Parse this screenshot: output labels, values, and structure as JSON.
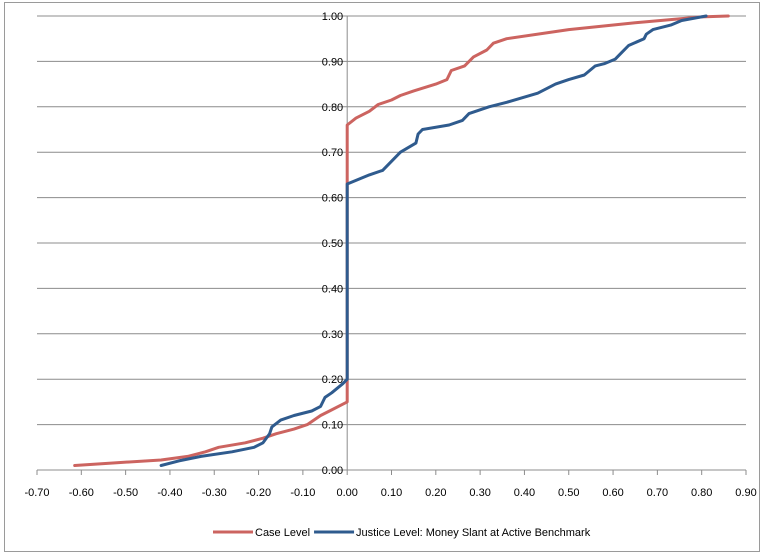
{
  "chart_data": {
    "type": "line",
    "title": "",
    "xlabel": "",
    "ylabel": "",
    "xlim": [
      -0.7,
      0.9
    ],
    "ylim": [
      0.0,
      1.0
    ],
    "grid": "horizontal",
    "legend_position": "bottom",
    "x_tick_labels": [
      "-0.70",
      "-0.60",
      "-0.50",
      "-0.40",
      "-0.30",
      "-0.20",
      "-0.10",
      "0.00",
      "0.10",
      "0.20",
      "0.30",
      "0.40",
      "0.50",
      "0.60",
      "0.70",
      "0.80",
      "0.90"
    ],
    "y_tick_labels": [
      "0.00",
      "0.10",
      "0.20",
      "0.30",
      "0.40",
      "0.50",
      "0.60",
      "0.70",
      "0.80",
      "0.90",
      "1.00"
    ],
    "series": [
      {
        "name": "Case Level",
        "color": "#cc6460",
        "points": [
          [
            -0.615,
            0.01
          ],
          [
            -0.52,
            0.016
          ],
          [
            -0.42,
            0.022
          ],
          [
            -0.36,
            0.03
          ],
          [
            -0.32,
            0.04
          ],
          [
            -0.29,
            0.05
          ],
          [
            -0.23,
            0.06
          ],
          [
            -0.19,
            0.07
          ],
          [
            -0.16,
            0.08
          ],
          [
            -0.12,
            0.09
          ],
          [
            -0.09,
            0.1
          ],
          [
            -0.06,
            0.12
          ],
          [
            -0.04,
            0.13
          ],
          [
            -0.01,
            0.145
          ],
          [
            0.0,
            0.15
          ],
          [
            0.0,
            0.63
          ],
          [
            0.0,
            0.76
          ],
          [
            0.02,
            0.775
          ],
          [
            0.05,
            0.79
          ],
          [
            0.07,
            0.805
          ],
          [
            0.1,
            0.815
          ],
          [
            0.12,
            0.825
          ],
          [
            0.15,
            0.835
          ],
          [
            0.2,
            0.85
          ],
          [
            0.225,
            0.86
          ],
          [
            0.235,
            0.88
          ],
          [
            0.265,
            0.89
          ],
          [
            0.285,
            0.91
          ],
          [
            0.315,
            0.925
          ],
          [
            0.33,
            0.94
          ],
          [
            0.36,
            0.95
          ],
          [
            0.5,
            0.97
          ],
          [
            0.65,
            0.985
          ],
          [
            0.8,
            0.998
          ],
          [
            0.86,
            1.0
          ]
        ]
      },
      {
        "name": "Justice Level: Money Slant at Active Benchmark",
        "color": "#2f5b8e",
        "points": [
          [
            -0.42,
            0.01
          ],
          [
            -0.38,
            0.02
          ],
          [
            -0.33,
            0.03
          ],
          [
            -0.26,
            0.04
          ],
          [
            -0.21,
            0.05
          ],
          [
            -0.19,
            0.06
          ],
          [
            -0.175,
            0.08
          ],
          [
            -0.17,
            0.095
          ],
          [
            -0.15,
            0.11
          ],
          [
            -0.12,
            0.12
          ],
          [
            -0.08,
            0.13
          ],
          [
            -0.06,
            0.14
          ],
          [
            -0.05,
            0.16
          ],
          [
            -0.035,
            0.17
          ],
          [
            -0.01,
            0.19
          ],
          [
            0.0,
            0.2
          ],
          [
            0.0,
            0.63
          ],
          [
            0.05,
            0.65
          ],
          [
            0.08,
            0.66
          ],
          [
            0.1,
            0.68
          ],
          [
            0.12,
            0.7
          ],
          [
            0.155,
            0.72
          ],
          [
            0.16,
            0.74
          ],
          [
            0.17,
            0.75
          ],
          [
            0.23,
            0.76
          ],
          [
            0.26,
            0.77
          ],
          [
            0.275,
            0.785
          ],
          [
            0.32,
            0.8
          ],
          [
            0.36,
            0.81
          ],
          [
            0.43,
            0.83
          ],
          [
            0.47,
            0.85
          ],
          [
            0.5,
            0.86
          ],
          [
            0.535,
            0.87
          ],
          [
            0.56,
            0.89
          ],
          [
            0.58,
            0.895
          ],
          [
            0.605,
            0.905
          ],
          [
            0.62,
            0.92
          ],
          [
            0.635,
            0.935
          ],
          [
            0.67,
            0.95
          ],
          [
            0.675,
            0.96
          ],
          [
            0.69,
            0.97
          ],
          [
            0.73,
            0.98
          ],
          [
            0.755,
            0.99
          ],
          [
            0.81,
            1.0
          ]
        ]
      }
    ]
  }
}
